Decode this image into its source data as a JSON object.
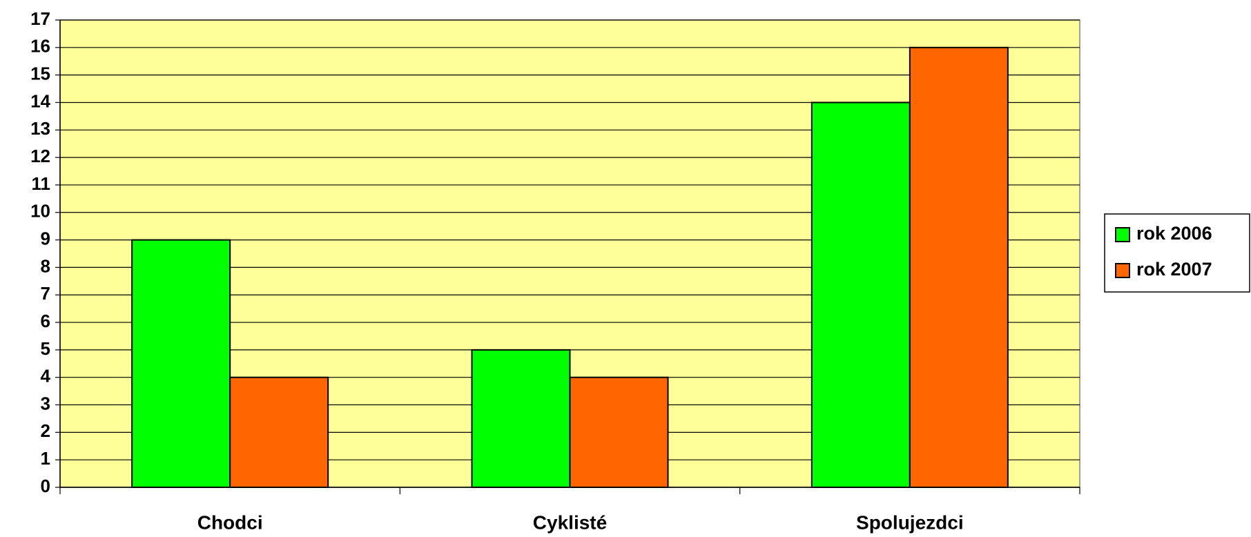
{
  "chart_data": {
    "type": "bar",
    "categories": [
      "Chodci",
      "Cyklisté",
      "Spolujezdci"
    ],
    "series": [
      {
        "name": "rok 2006",
        "color": "#00ff00",
        "values": [
          9,
          5,
          14
        ]
      },
      {
        "name": "rok 2007",
        "color": "#ff6600",
        "values": [
          4,
          4,
          16
        ]
      }
    ],
    "ylim": [
      0,
      17
    ],
    "yticks": [
      0,
      1,
      2,
      3,
      4,
      5,
      6,
      7,
      8,
      9,
      10,
      11,
      12,
      13,
      14,
      15,
      16,
      17
    ],
    "grid": true,
    "legend": "right",
    "background": "#ffff99"
  }
}
